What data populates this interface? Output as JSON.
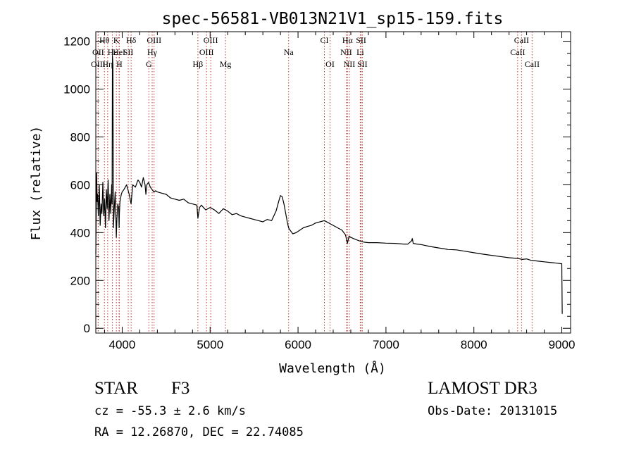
{
  "chart_data": {
    "type": "line",
    "title": "spec-56581-VB013N21V1_sp15-159.fits",
    "xlabel": "Wavelength (Å)",
    "ylabel": "Flux (relative)",
    "xlim": [
      3700,
      9100
    ],
    "ylim": [
      -20,
      1240
    ],
    "x_ticks": [
      4000,
      5000,
      6000,
      7000,
      8000,
      9000
    ],
    "y_ticks": [
      0,
      200,
      400,
      600,
      800,
      1000,
      1200
    ],
    "x_tick_labels": [
      "4000",
      "5000",
      "6000",
      "7000",
      "8000",
      "9000"
    ],
    "y_tick_labels": [
      "0",
      "200",
      "400",
      "600",
      "800",
      "1000",
      "1200"
    ],
    "series": [
      {
        "name": "flux",
        "x": [
          3700,
          3710,
          3715,
          3720,
          3730,
          3740,
          3750,
          3760,
          3770,
          3780,
          3790,
          3800,
          3810,
          3820,
          3830,
          3840,
          3850,
          3860,
          3870,
          3880,
          3885,
          3889,
          3895,
          3900,
          3910,
          3920,
          3930,
          3933,
          3940,
          3950,
          3960,
          3965,
          3968,
          3975,
          3990,
          4000,
          4020,
          4050,
          4080,
          4101,
          4120,
          4150,
          4180,
          4200,
          4220,
          4240,
          4260,
          4270,
          4280,
          4300,
          4320,
          4340,
          4360,
          4380,
          4400,
          4450,
          4500,
          4550,
          4600,
          4650,
          4700,
          4750,
          4800,
          4850,
          4861,
          4880,
          4900,
          4950,
          5000,
          5050,
          5100,
          5150,
          5200,
          5250,
          5300,
          5350,
          5400,
          5450,
          5500,
          5550,
          5600,
          5650,
          5700,
          5750,
          5780,
          5800,
          5820,
          5840,
          5860,
          5880,
          5893,
          5910,
          5940,
          5980,
          6020,
          6060,
          6100,
          6150,
          6200,
          6250,
          6300,
          6350,
          6400,
          6450,
          6500,
          6540,
          6562,
          6580,
          6600,
          6650,
          6700,
          6750,
          6800,
          6900,
          7000,
          7100,
          7200,
          7250,
          7290,
          7300,
          7310,
          7350,
          7400,
          7500,
          7600,
          7700,
          7800,
          7900,
          8000,
          8100,
          8200,
          8300,
          8400,
          8500,
          8550,
          8600,
          8650,
          8700,
          8750,
          8800,
          8850,
          8900,
          8950,
          8990,
          9000,
          9005
        ],
        "values": [
          310,
          650,
          530,
          560,
          470,
          600,
          430,
          520,
          480,
          610,
          470,
          540,
          420,
          580,
          500,
          620,
          450,
          560,
          480,
          600,
          520,
          1140,
          1100,
          420,
          500,
          570,
          440,
          380,
          460,
          520,
          500,
          420,
          480,
          530,
          560,
          570,
          580,
          600,
          560,
          520,
          600,
          590,
          620,
          610,
          590,
          630,
          600,
          560,
          600,
          610,
          590,
          580,
          570,
          575,
          570,
          565,
          560,
          545,
          540,
          535,
          540,
          525,
          520,
          515,
          460,
          505,
          515,
          495,
          505,
          495,
          480,
          500,
          490,
          475,
          480,
          470,
          465,
          460,
          455,
          450,
          445,
          455,
          450,
          490,
          530,
          555,
          550,
          520,
          480,
          440,
          420,
          410,
          395,
          400,
          410,
          420,
          425,
          430,
          440,
          445,
          450,
          440,
          430,
          420,
          410,
          390,
          355,
          385,
          380,
          372,
          365,
          360,
          358,
          358,
          356,
          355,
          352,
          352,
          365,
          375,
          355,
          352,
          350,
          342,
          336,
          330,
          328,
          322,
          316,
          310,
          305,
          300,
          295,
          292,
          288,
          290,
          284,
          282,
          280,
          278,
          276,
          274,
          272,
          270,
          270,
          60
        ]
      }
    ],
    "spectral_lines": [
      {
        "label": "Hθ",
        "x": 3798,
        "row": 0
      },
      {
        "label": "K",
        "x": 3934,
        "row": 0
      },
      {
        "label": "Hδ",
        "x": 4102,
        "row": 0
      },
      {
        "label": "OIII",
        "x": 4363,
        "row": 0
      },
      {
        "label": "OIII",
        "x": 5007,
        "row": 0
      },
      {
        "label": "CI",
        "x": 6300,
        "row": 0
      },
      {
        "label": "Hα",
        "x": 6563,
        "row": 0
      },
      {
        "label": "SII",
        "x": 6717,
        "row": 0
      },
      {
        "label": "CaII",
        "x": 8542,
        "row": 0
      },
      {
        "label": "OII",
        "x": 3727,
        "row": 1
      },
      {
        "label": "Hε",
        "x": 3889,
        "row": 1
      },
      {
        "label": "HeI",
        "x": 3965,
        "row": 1
      },
      {
        "label": "SII",
        "x": 4069,
        "row": 1
      },
      {
        "label": "Hγ",
        "x": 4341,
        "row": 1
      },
      {
        "label": "OIII",
        "x": 4959,
        "row": 1
      },
      {
        "label": "Na",
        "x": 5893,
        "row": 1
      },
      {
        "label": "NII",
        "x": 6548,
        "row": 1
      },
      {
        "label": "Li",
        "x": 6708,
        "row": 1
      },
      {
        "label": "CaII",
        "x": 8498,
        "row": 1
      },
      {
        "label": "OIII",
        "x": 3727,
        "row": 2
      },
      {
        "label": "Hη",
        "x": 3835,
        "row": 2
      },
      {
        "label": "H",
        "x": 3968,
        "row": 2
      },
      {
        "label": "G",
        "x": 4304,
        "row": 2
      },
      {
        "label": "Hβ",
        "x": 4861,
        "row": 2
      },
      {
        "label": "Mg",
        "x": 5175,
        "row": 2
      },
      {
        "label": "OI",
        "x": 6364,
        "row": 2
      },
      {
        "label": "NII",
        "x": 6584,
        "row": 2
      },
      {
        "label": "SII",
        "x": 6731,
        "row": 2
      },
      {
        "label": "CaII",
        "x": 8662,
        "row": 2
      }
    ]
  },
  "info": {
    "object_class": "STAR",
    "subclass": "F3",
    "survey": "LAMOST DR3",
    "cz": "cz = -55.3 ± 2.6 km/s",
    "obs_date": "Obs-Date: 20131015",
    "coords": "RA =  12.26870, DEC =  22.74085"
  }
}
